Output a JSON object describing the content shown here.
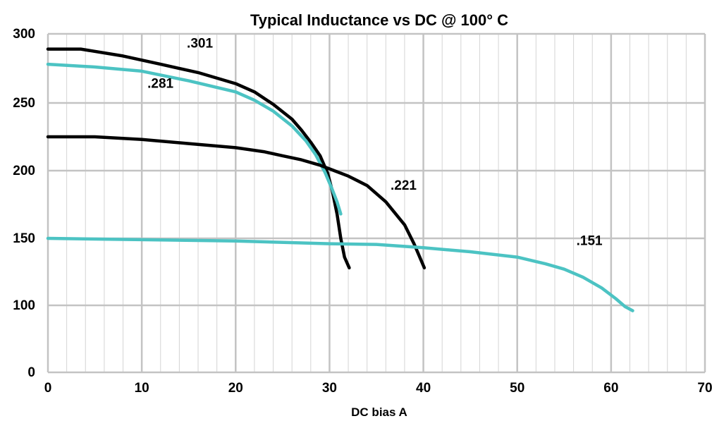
{
  "chart_data": {
    "type": "line",
    "title": "Typical Inductance vs DC @ 100° C",
    "xlabel": "DC bias A",
    "ylabel": "",
    "xlim": [
      0,
      70
    ],
    "x_ticks": [
      0,
      10,
      20,
      30,
      40,
      50,
      60,
      70
    ],
    "y_ticks": [
      0,
      100,
      150,
      200,
      250,
      300
    ],
    "y_axis_note": "non-linear: 0 to 100 compressed",
    "grid": true,
    "minor_x_grid_step": 2,
    "legend": "none (series labelled directly on plot)",
    "colors": {
      "black_series": "#000000",
      "teal_series": "#4cc3c3",
      "grid": "#c3c3c3"
    },
    "series": [
      {
        "name": ".301",
        "color": "#000000",
        "points": [
          [
            0,
            289
          ],
          [
            3.5,
            289
          ],
          [
            8,
            284
          ],
          [
            12,
            278
          ],
          [
            16,
            272
          ],
          [
            20,
            264
          ],
          [
            22,
            258
          ],
          [
            24,
            249
          ],
          [
            26,
            238
          ],
          [
            27,
            230
          ],
          [
            28,
            221
          ],
          [
            29,
            211
          ],
          [
            29.8,
            198
          ],
          [
            30.3,
            185
          ],
          [
            30.8,
            168
          ],
          [
            31.2,
            150
          ],
          [
            31.6,
            136
          ],
          [
            32.1,
            128
          ]
        ]
      },
      {
        "name": ".281",
        "color": "#4cc3c3",
        "points": [
          [
            0,
            278
          ],
          [
            5,
            276
          ],
          [
            10,
            273
          ],
          [
            15,
            266
          ],
          [
            20,
            258
          ],
          [
            22,
            252
          ],
          [
            24,
            244
          ],
          [
            26,
            233
          ],
          [
            27.5,
            222
          ],
          [
            28.5,
            212
          ],
          [
            29.5,
            199
          ],
          [
            30.3,
            186
          ],
          [
            30.8,
            177
          ],
          [
            31.2,
            168
          ]
        ]
      },
      {
        "name": ".221",
        "color": "#000000",
        "points": [
          [
            0,
            225
          ],
          [
            5,
            225
          ],
          [
            10,
            223
          ],
          [
            15,
            220
          ],
          [
            20,
            217
          ],
          [
            23,
            214
          ],
          [
            25,
            211
          ],
          [
            27,
            208
          ],
          [
            29,
            204
          ],
          [
            30.5,
            200
          ],
          [
            32,
            196
          ],
          [
            34,
            189
          ],
          [
            36,
            177
          ],
          [
            38,
            160
          ],
          [
            39,
            146
          ],
          [
            40.1,
            128
          ]
        ]
      },
      {
        "name": ".151",
        "color": "#4cc3c3",
        "points": [
          [
            0,
            150
          ],
          [
            10,
            149
          ],
          [
            20,
            148
          ],
          [
            30,
            146
          ],
          [
            35,
            145.5
          ],
          [
            40,
            143
          ],
          [
            45,
            140
          ],
          [
            50,
            136
          ],
          [
            53,
            131
          ],
          [
            55,
            127
          ],
          [
            57,
            121
          ],
          [
            59,
            113
          ],
          [
            60.5,
            105
          ],
          [
            61.5,
            98
          ],
          [
            62.3,
            92
          ]
        ]
      }
    ],
    "labels": [
      {
        "text": ".301",
        "x": 14.8,
        "y": 290
      },
      {
        "text": ".281",
        "x": 10.6,
        "y": 261
      },
      {
        "text": ".221",
        "x": 36.5,
        "y": 186
      },
      {
        "text": ".151",
        "x": 56.3,
        "y": 145
      }
    ]
  }
}
